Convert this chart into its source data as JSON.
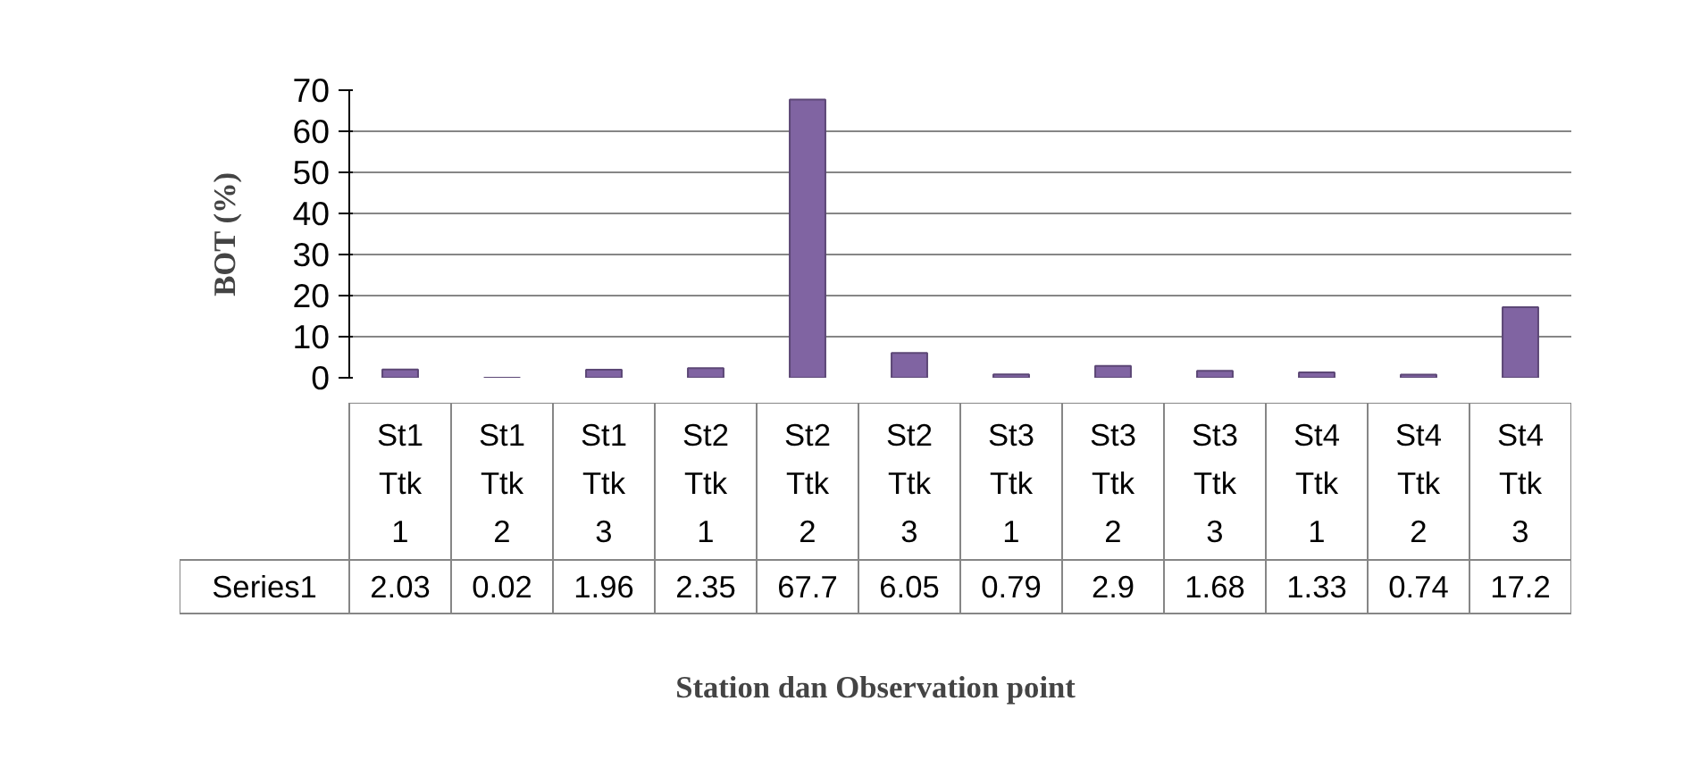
{
  "chart_data": {
    "type": "bar",
    "xlabel": "Station dan Observation point",
    "ylabel": "BOT (%)",
    "categories": [
      "St1 Ttk 1",
      "St1 Ttk 2",
      "St1 Ttk 3",
      "St2 Ttk 1",
      "St2 Ttk 2",
      "St2 Ttk 3",
      "St3 Ttk 1",
      "St3 Ttk 2",
      "St3 Ttk 3",
      "St4 Ttk 1",
      "St4 Ttk 2",
      "St4 Ttk 3"
    ],
    "series": [
      {
        "name": "Series1",
        "color": "#8064a2",
        "values": [
          2.03,
          0.02,
          1.96,
          2.35,
          67.7,
          6.05,
          0.79,
          2.9,
          1.68,
          1.33,
          0.74,
          17.2
        ]
      }
    ],
    "ylim": [
      0,
      70
    ],
    "yticks": [
      0,
      10,
      20,
      30,
      40,
      50,
      60,
      70
    ],
    "grid": "y",
    "data_labels": true
  }
}
